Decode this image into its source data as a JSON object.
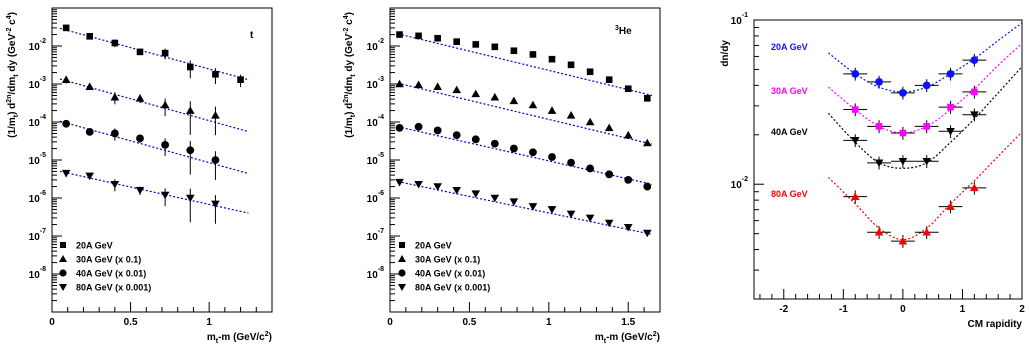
{
  "chart_data": [
    {
      "type": "scatter",
      "title": "t",
      "xlabel": "m_t-m (GeV/c^2)",
      "ylabel": "(1/m_t) d^2n/dm_t dy (GeV^-2 c^4)",
      "xlim": [
        0,
        1.4
      ],
      "ylim": [
        1e-09,
        0.1
      ],
      "yscale": "log",
      "x_ticks": [
        "0",
        "0.5",
        "1"
      ],
      "y_ticks": [
        "10^-2",
        "10^-3",
        "10^-4",
        "10^-5",
        "10^-6",
        "10^-7",
        "10^-8"
      ],
      "grid": false,
      "legend_position": "bottom-left",
      "series": [
        {
          "name": "20A GeV",
          "marker": "square",
          "fit_color": "#0000cc",
          "x": [
            0.09,
            0.24,
            0.4,
            0.56,
            0.72,
            0.88,
            1.04,
            1.2
          ],
          "y": [
            0.03,
            0.018,
            0.012,
            0.007,
            0.0065,
            0.0028,
            0.0018,
            0.0013
          ],
          "fit": [
            [
              0.05,
              0.029
            ],
            [
              1.25,
              0.0013
            ]
          ]
        },
        {
          "name": "30A GeV (x 0.1)",
          "marker": "triangle-up",
          "fit_color": "#0000cc",
          "x": [
            0.09,
            0.24,
            0.4,
            0.56,
            0.72,
            0.88,
            1.04
          ],
          "y": [
            0.0013,
            0.00085,
            0.00045,
            0.00042,
            0.00028,
            0.0002,
            0.00015
          ],
          "fit": [
            [
              0.05,
              0.00135
            ],
            [
              1.25,
              5.6e-05
            ]
          ]
        },
        {
          "name": "40A GeV (x 0.01)",
          "marker": "circle",
          "fit_color": "#0000cc",
          "x": [
            0.09,
            0.24,
            0.4,
            0.56,
            0.72,
            0.88,
            1.04
          ],
          "y": [
            9e-05,
            5.5e-05,
            5e-05,
            3.7e-05,
            2.5e-05,
            1.8e-05,
            1e-05
          ],
          "fit": [
            [
              0.05,
              0.000105
            ],
            [
              1.25,
              4.4e-06
            ]
          ]
        },
        {
          "name": "80A GeV (x 0.001)",
          "marker": "triangle-down",
          "fit_color": "#0000cc",
          "x": [
            0.09,
            0.24,
            0.4,
            0.56,
            0.72,
            0.88,
            1.04
          ],
          "y": [
            4.5e-06,
            3.8e-06,
            2.3e-06,
            1.6e-06,
            1.2e-06,
            1e-06,
            7e-07
          ],
          "fit": [
            [
              0.05,
              5e-06
            ],
            [
              1.25,
              4e-07
            ]
          ]
        }
      ]
    },
    {
      "type": "scatter",
      "title": "3He",
      "xlabel": "m_t-m (GeV/c^2)",
      "ylabel": "(1/m_t) d^2n/dm_t dy (GeV^-2 c^4)",
      "xlim": [
        0,
        1.7
      ],
      "ylim": [
        1e-09,
        0.1
      ],
      "yscale": "log",
      "x_ticks": [
        "0",
        "0.5",
        "1",
        "1.5"
      ],
      "y_ticks": [
        "10^-2",
        "10^-3",
        "10^-4",
        "10^-5",
        "10^-6",
        "10^-7",
        "10^-8"
      ],
      "grid": false,
      "legend_position": "bottom-left",
      "series": [
        {
          "name": "20A GeV",
          "marker": "square",
          "fit_color": "#0000cc",
          "x": [
            0.06,
            0.18,
            0.3,
            0.42,
            0.54,
            0.66,
            0.78,
            0.9,
            1.02,
            1.14,
            1.26,
            1.38,
            1.5,
            1.62
          ],
          "y": [
            0.02,
            0.0185,
            0.016,
            0.013,
            0.011,
            0.0095,
            0.0075,
            0.006,
            0.0045,
            0.0032,
            0.0021,
            0.0013,
            0.00075,
            0.00042
          ],
          "fit": [
            [
              0.05,
              0.021
            ],
            [
              1.65,
              0.0005
            ]
          ]
        },
        {
          "name": "30A GeV (x 0.1)",
          "marker": "triangle-up",
          "fit_color": "#0000cc",
          "x": [
            0.06,
            0.18,
            0.3,
            0.42,
            0.54,
            0.66,
            0.78,
            0.9,
            1.02,
            1.14,
            1.26,
            1.38,
            1.5,
            1.62
          ],
          "y": [
            0.001,
            0.00095,
            0.00085,
            0.0007,
            0.00055,
            0.00045,
            0.00036,
            0.00028,
            0.0002,
            0.00015,
            0.0001,
            7e-05,
            4.5e-05,
            2.8e-05
          ],
          "fit": [
            [
              0.05,
              0.00105
            ],
            [
              1.65,
              2.6e-05
            ]
          ]
        },
        {
          "name": "40A GeV (x 0.01)",
          "marker": "circle",
          "fit_color": "#0000cc",
          "x": [
            0.06,
            0.18,
            0.3,
            0.42,
            0.54,
            0.66,
            0.78,
            0.9,
            1.02,
            1.14,
            1.26,
            1.38,
            1.5,
            1.62
          ],
          "y": [
            7e-05,
            7.5e-05,
            6e-05,
            4.5e-05,
            3.5e-05,
            2.7e-05,
            2e-05,
            1.6e-05,
            1.2e-05,
            8.5e-06,
            6e-06,
            4.2e-06,
            3e-06,
            2e-06
          ],
          "fit": [
            [
              0.05,
              7.5e-05
            ],
            [
              1.65,
              2.3e-06
            ]
          ]
        },
        {
          "name": "80A GeV (x 0.001)",
          "marker": "triangle-down",
          "fit_color": "#0000cc",
          "x": [
            0.06,
            0.18,
            0.3,
            0.42,
            0.54,
            0.66,
            0.78,
            0.9,
            1.02,
            1.14,
            1.26,
            1.38,
            1.5,
            1.62
          ],
          "y": [
            2.6e-06,
            2.3e-06,
            2e-06,
            1.6e-06,
            1.3e-06,
            1e-06,
            8e-07,
            6e-07,
            5e-07,
            3.8e-07,
            3e-07,
            2.2e-07,
            1.7e-07,
            1.2e-07
          ],
          "fit": [
            [
              0.05,
              2.7e-06
            ],
            [
              1.65,
              1.1e-07
            ]
          ]
        }
      ]
    },
    {
      "type": "scatter",
      "title": "",
      "xlabel": "CM rapidity",
      "ylabel": "dn/dy",
      "xlim": [
        -2.5,
        2
      ],
      "ylim": [
        0.002,
        0.1
      ],
      "yscale": "log",
      "x_ticks": [
        "-2",
        "-1",
        "0",
        "1",
        "2"
      ],
      "y_ticks": [
        "10^-1",
        "10^-2"
      ],
      "grid": false,
      "legend_position": "left",
      "series": [
        {
          "name": "20A GeV",
          "color": "#1010ff",
          "marker": "circle",
          "x": [
            -0.8,
            -0.4,
            0.0,
            0.4,
            0.8,
            1.2
          ],
          "y": [
            0.047,
            0.042,
            0.036,
            0.04,
            0.047,
            0.057
          ],
          "fit": [
            [
              -1.25,
              0.063
            ],
            [
              -0.8,
              0.047
            ],
            [
              -0.4,
              0.039
            ],
            [
              0.0,
              0.0365
            ],
            [
              0.4,
              0.039
            ],
            [
              0.8,
              0.047
            ],
            [
              1.2,
              0.058
            ],
            [
              1.6,
              0.075
            ],
            [
              2.0,
              0.096
            ]
          ]
        },
        {
          "name": "30A GeV",
          "color": "#ff00ff",
          "marker": "square",
          "x": [
            -0.8,
            -0.4,
            0.0,
            0.4,
            0.8,
            1.2
          ],
          "y": [
            0.0285,
            0.0225,
            0.0205,
            0.0225,
            0.0295,
            0.0365
          ],
          "fit": [
            [
              -1.25,
              0.039
            ],
            [
              -0.8,
              0.0285
            ],
            [
              -0.4,
              0.0225
            ],
            [
              0.0,
              0.0205
            ],
            [
              0.4,
              0.0225
            ],
            [
              0.8,
              0.0285
            ],
            [
              1.2,
              0.038
            ],
            [
              1.6,
              0.053
            ],
            [
              2.0,
              0.072
            ]
          ]
        },
        {
          "name": "40A GeV",
          "color": "#000000",
          "marker": "triangle-down",
          "x": [
            -0.8,
            -0.4,
            0.0,
            0.4,
            0.8,
            1.2
          ],
          "y": [
            0.0185,
            0.0135,
            0.0138,
            0.0138,
            0.021,
            0.0265
          ],
          "fit": [
            [
              -1.25,
              0.027
            ],
            [
              -0.8,
              0.018
            ],
            [
              -0.4,
              0.0135
            ],
            [
              0.0,
              0.0125
            ],
            [
              0.4,
              0.0135
            ],
            [
              0.8,
              0.018
            ],
            [
              1.2,
              0.025
            ],
            [
              1.6,
              0.036
            ],
            [
              2.0,
              0.052
            ]
          ]
        },
        {
          "name": "80A GeV",
          "color": "#ff0000",
          "marker": "triangle-up",
          "x": [
            -0.8,
            -0.4,
            0.0,
            0.4,
            0.8,
            1.2
          ],
          "y": [
            0.0084,
            0.0051,
            0.0045,
            0.0051,
            0.0073,
            0.0095
          ],
          "fit": [
            [
              -1.25,
              0.011
            ],
            [
              -0.8,
              0.0076
            ],
            [
              -0.4,
              0.0054
            ],
            [
              0.0,
              0.0046
            ],
            [
              0.4,
              0.0054
            ],
            [
              0.8,
              0.0076
            ],
            [
              1.2,
              0.0105
            ],
            [
              1.6,
              0.0148
            ],
            [
              2.0,
              0.0208
            ]
          ]
        }
      ]
    }
  ]
}
